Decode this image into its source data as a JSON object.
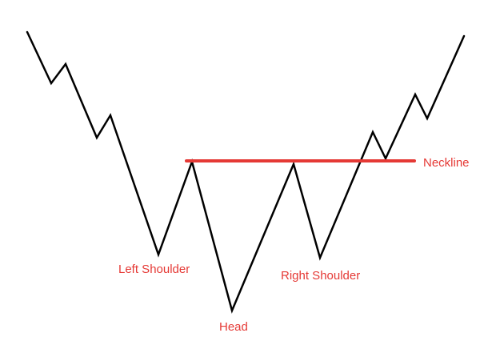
{
  "diagram": {
    "pattern": "inverse head and shoulders",
    "price_line_color": "#000000",
    "neckline_color": "#e53935",
    "label_color": "#e53935",
    "labels": {
      "left_shoulder": "Left Shoulder",
      "head": "Head",
      "right_shoulder": "Right Shoulder",
      "neckline": "Neckline"
    }
  }
}
